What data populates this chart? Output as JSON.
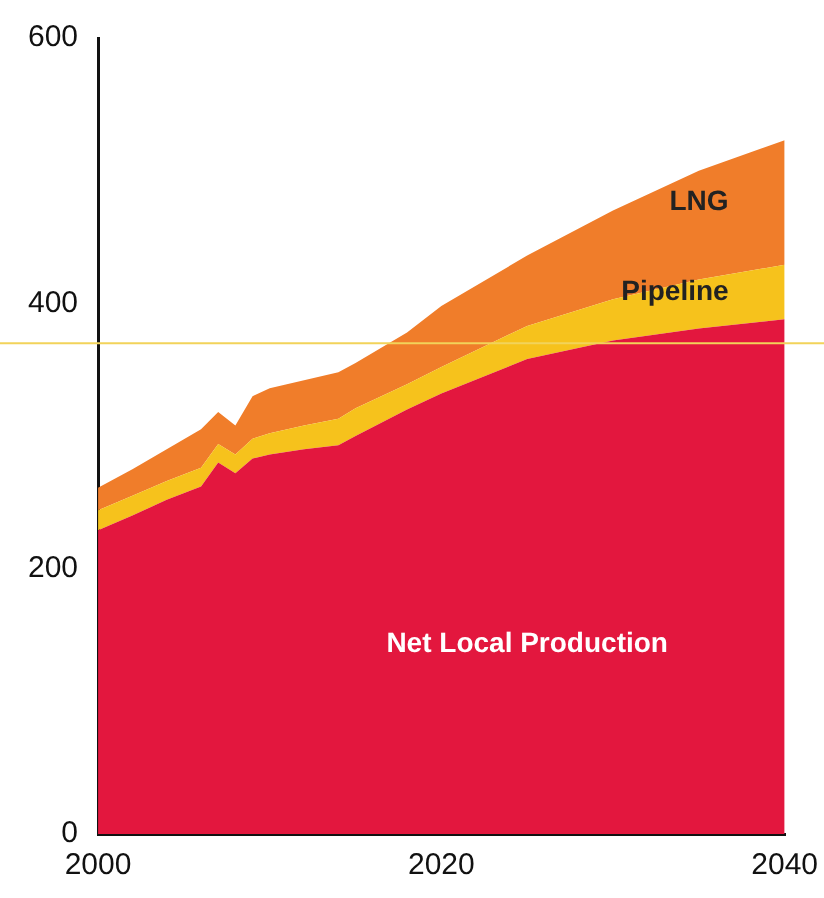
{
  "chart_data": {
    "type": "area",
    "stacked": true,
    "x": [
      2000,
      2002,
      2004,
      2006,
      2007,
      2008,
      2009,
      2010,
      2012,
      2014,
      2015,
      2018,
      2020,
      2025,
      2030,
      2035,
      2040
    ],
    "series": [
      {
        "name": "Net Local Production",
        "color": "#e3173e",
        "values": [
          229,
          240,
          252,
          262,
          280,
          272,
          283,
          286,
          290,
          293,
          300,
          320,
          332,
          358,
          372,
          381,
          388
        ]
      },
      {
        "name": "Pipeline",
        "color": "#f6c21c",
        "values": [
          15,
          15,
          14,
          14,
          14,
          14,
          15,
          16,
          18,
          20,
          21,
          19,
          20,
          25,
          31,
          37,
          41
        ]
      },
      {
        "name": "LNG",
        "color": "#f07d2a",
        "values": [
          17,
          20,
          24,
          29,
          24,
          22,
          32,
          34,
          34,
          35,
          34,
          39,
          46,
          53,
          67,
          82,
          94
        ]
      }
    ],
    "xlim": [
      2000,
      2040
    ],
    "xticks": [
      2000,
      2020,
      2040
    ],
    "ylim": [
      0,
      600
    ],
    "yticks": [
      0,
      200,
      400,
      600
    ],
    "ref_lines": [
      {
        "axis": "y",
        "value": 370,
        "color": "#f2d35a"
      }
    ],
    "grid": false,
    "legend": false
  }
}
